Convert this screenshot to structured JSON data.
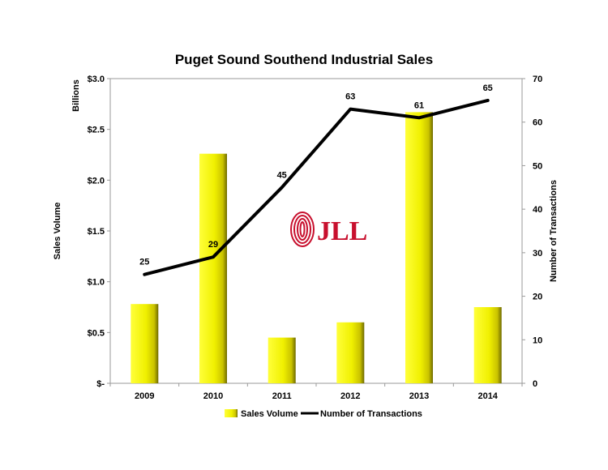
{
  "chart_data": {
    "type": "bar",
    "title": "Puget Sound Southend Industrial Sales",
    "categories": [
      "2009",
      "2010",
      "2011",
      "2012",
      "2013",
      "2014"
    ],
    "y_left": {
      "label": "Sales Volume",
      "unit_label": "Billions",
      "ylim": [
        0,
        3.0
      ],
      "ticks": [
        0,
        0.5,
        1.0,
        1.5,
        2.0,
        2.5,
        3.0
      ],
      "tick_labels": [
        "$-",
        "$0.5",
        "$1.0",
        "$1.5",
        "$2.0",
        "$2.5",
        "$3.0"
      ]
    },
    "y_right": {
      "label": "Number of Transactions",
      "ylim": [
        0,
        70
      ],
      "ticks": [
        0,
        10,
        20,
        30,
        40,
        50,
        60,
        70
      ],
      "tick_labels": [
        "0",
        "10",
        "20",
        "30",
        "40",
        "50",
        "60",
        "70"
      ]
    },
    "series": [
      {
        "name": "Sales Volume",
        "type": "bar",
        "axis": "left",
        "color": "#f2f200",
        "values": [
          0.78,
          2.26,
          0.45,
          0.6,
          2.67,
          0.75
        ]
      },
      {
        "name": "Number of Transactions",
        "type": "line",
        "axis": "right",
        "color": "#000000",
        "values": [
          25,
          29,
          45,
          63,
          61,
          65
        ],
        "data_labels": [
          "25",
          "29",
          "45",
          "63",
          "61",
          "65"
        ]
      }
    ],
    "grid": false,
    "legend_position": "bottom"
  },
  "logo": {
    "text": "JLL",
    "color": "#c8102e"
  }
}
